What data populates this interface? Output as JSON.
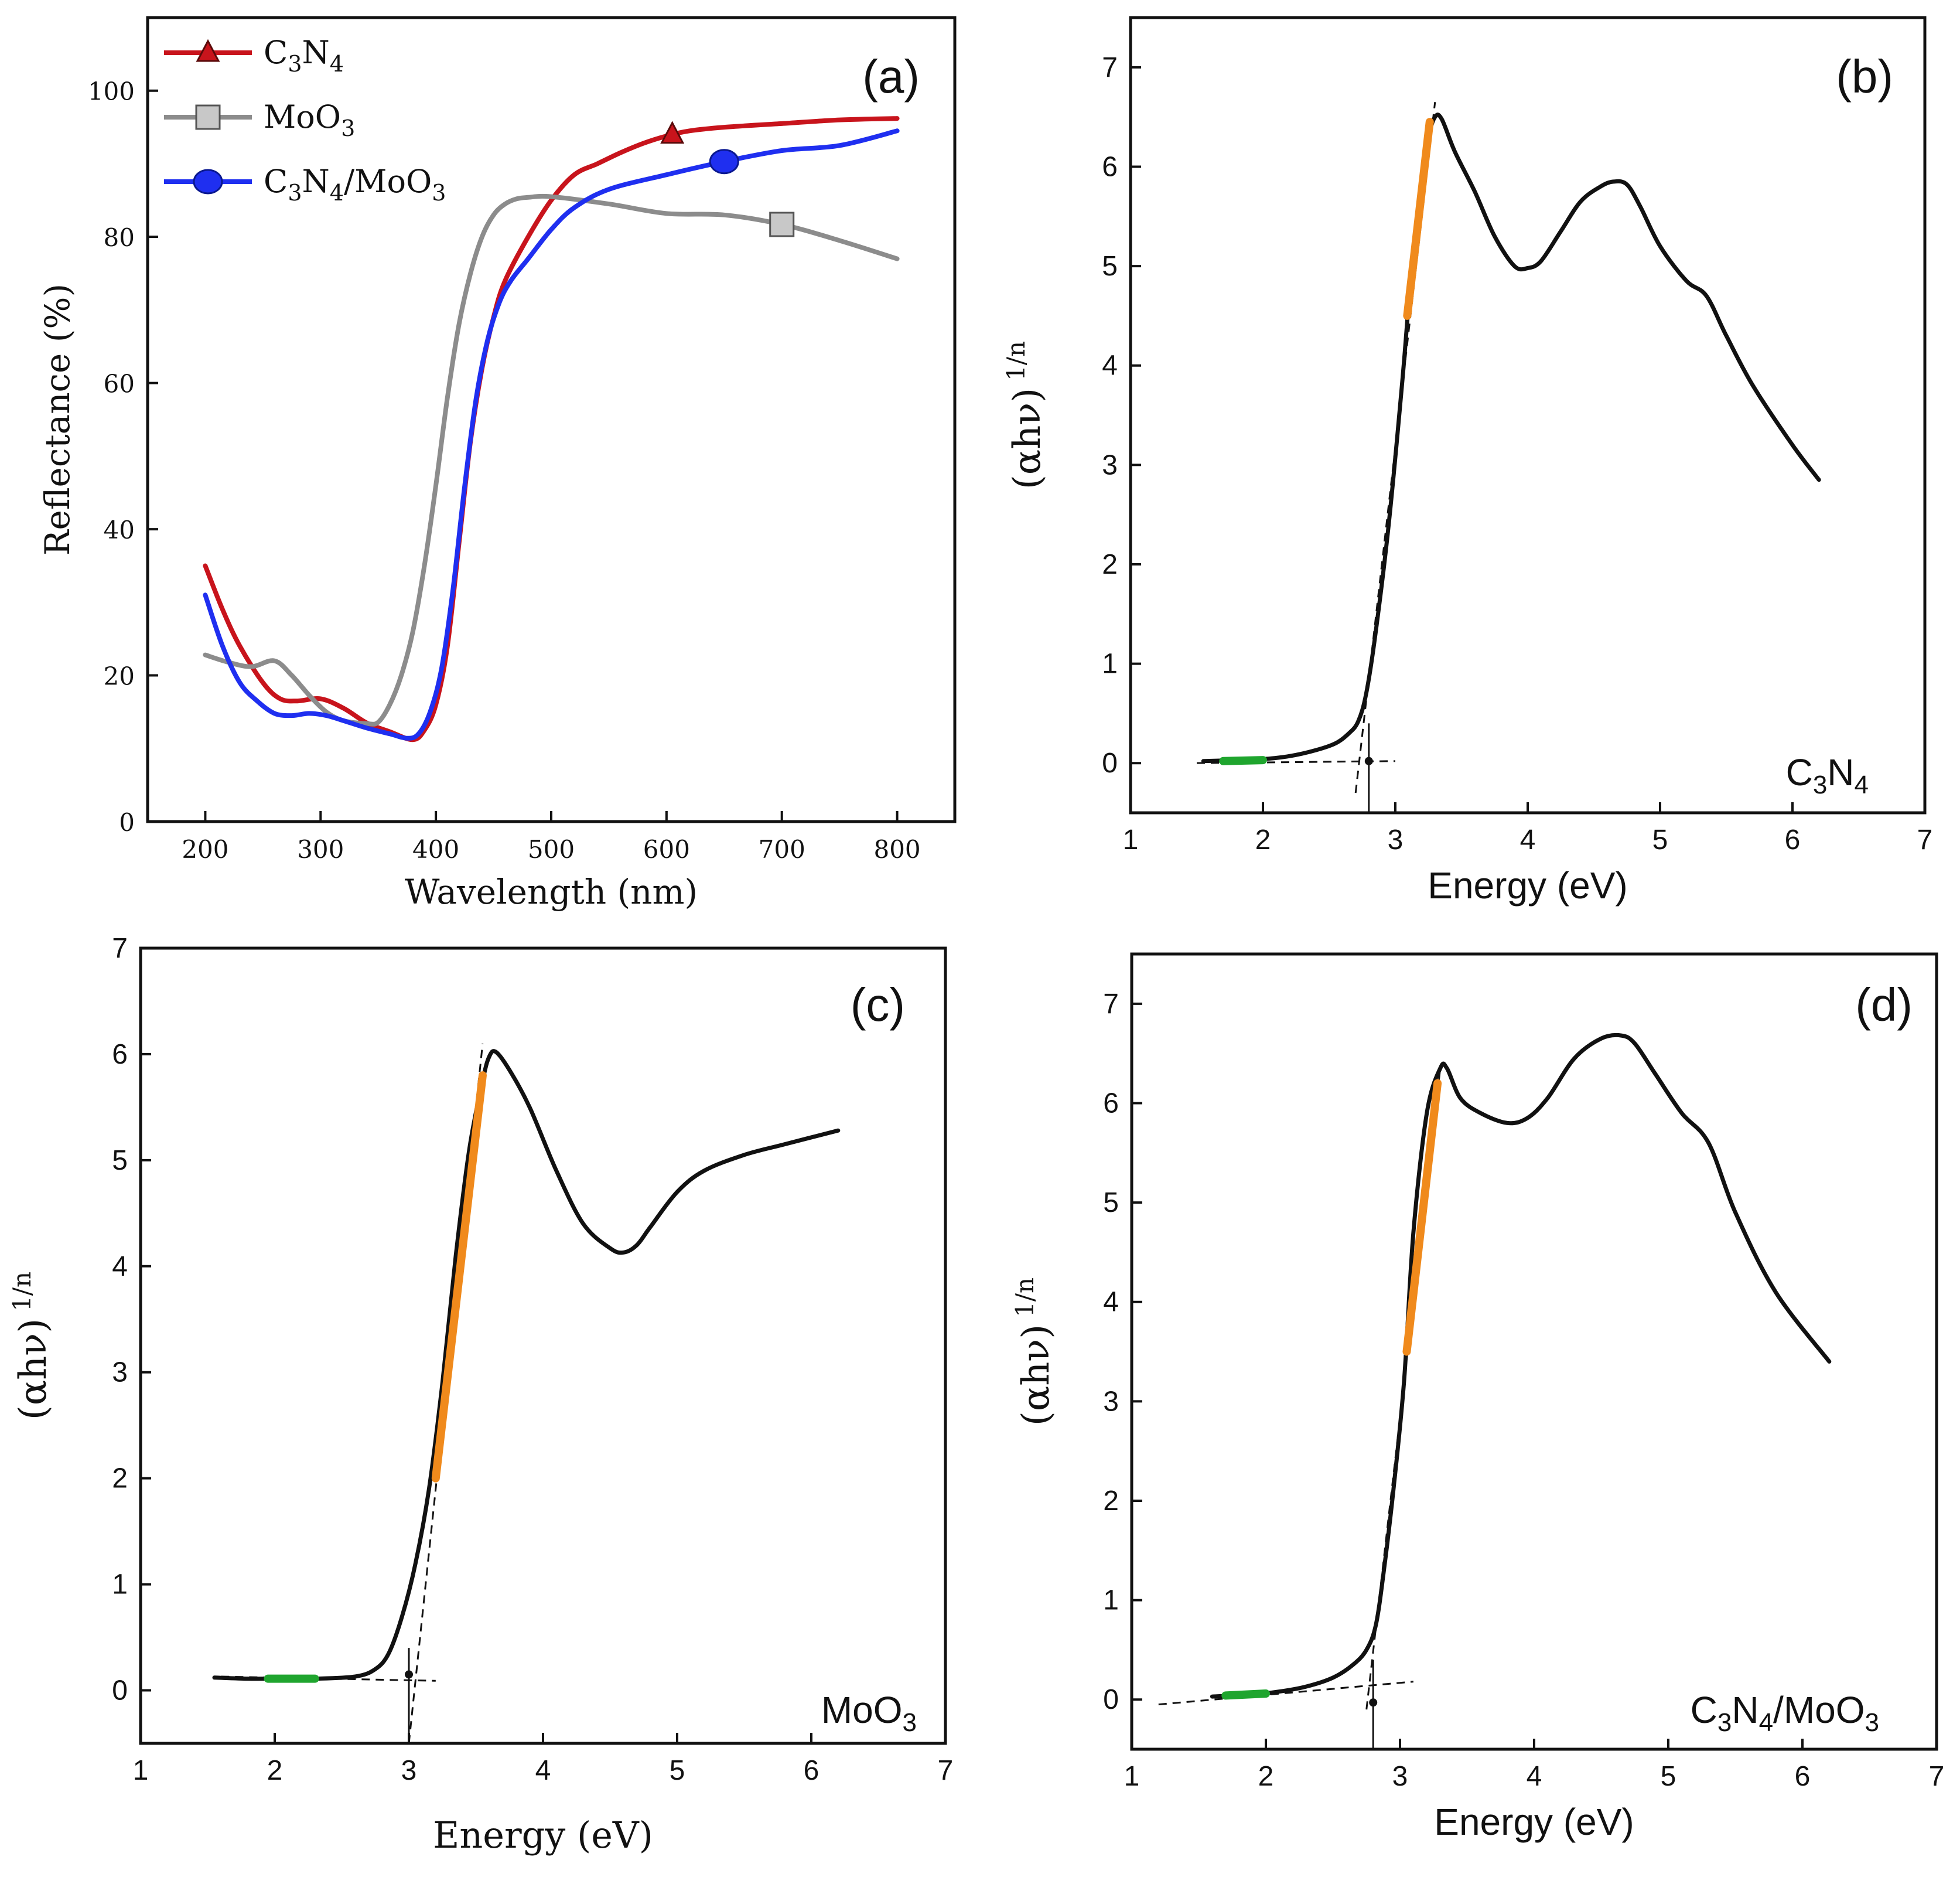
{
  "colors": {
    "red": "#c8141c",
    "gray": "#8c8c8c",
    "blue": "#1f2ff0",
    "black": "#111111",
    "orange": "#f08a1c",
    "green": "#1fa52e"
  },
  "chart_data": [
    {
      "id": "a",
      "type": "line",
      "panel_label": "(a)",
      "xlabel": "Wavelength (nm)",
      "ylabel": "Reflectance (%)",
      "xlim": [
        150,
        850
      ],
      "ylim": [
        0,
        110
      ],
      "xticks": [
        200,
        300,
        400,
        500,
        600,
        700,
        800
      ],
      "yticks": [
        0,
        20,
        40,
        60,
        80,
        100
      ],
      "legend_position": "top-left",
      "legend": [
        {
          "base": "C",
          "sub1": "3",
          "mid": "N",
          "sub2": "4",
          "tail": "",
          "sub3": "",
          "end": "",
          "marker": "triangle",
          "color_key": "red"
        },
        {
          "base": "MoO",
          "sub1": "3",
          "mid": "",
          "sub2": "",
          "tail": "",
          "sub3": "",
          "end": "",
          "marker": "square",
          "color_key": "gray"
        },
        {
          "base": "C",
          "sub1": "3",
          "mid": "N",
          "sub2": "4",
          "tail": "/MoO",
          "sub3": "3",
          "end": "",
          "marker": "circle",
          "color_key": "blue"
        }
      ],
      "series": [
        {
          "name": "C3N4",
          "color_key": "red",
          "marker": "triangle",
          "marker_at": [
            605,
            94
          ],
          "x": [
            200,
            215,
            230,
            250,
            265,
            280,
            300,
            320,
            340,
            360,
            380,
            390,
            400,
            410,
            420,
            430,
            440,
            450,
            460,
            480,
            500,
            520,
            540,
            560,
            580,
            600,
            620,
            650,
            700,
            750,
            800
          ],
          "y": [
            35,
            29,
            24,
            19,
            16.8,
            16.5,
            16.8,
            15.5,
            13.5,
            12.3,
            11.2,
            12.5,
            16,
            24,
            38,
            52,
            62,
            69,
            74,
            80,
            85,
            88.5,
            90,
            91.5,
            92.8,
            93.8,
            94.5,
            95,
            95.5,
            96,
            96.2
          ]
        },
        {
          "name": "MoO3",
          "color_key": "gray",
          "marker": "square",
          "marker_at": [
            700,
            81.7
          ],
          "x": [
            200,
            220,
            240,
            260,
            275,
            290,
            305,
            320,
            340,
            350,
            360,
            370,
            380,
            390,
            400,
            410,
            420,
            430,
            440,
            450,
            460,
            470,
            480,
            500,
            550,
            600,
            650,
            700,
            750,
            800
          ],
          "y": [
            22.8,
            21.8,
            21.2,
            22,
            20,
            17.3,
            15,
            13.8,
            13.4,
            13.6,
            16,
            20,
            26,
            35,
            46,
            58,
            68,
            75,
            80,
            83,
            84.5,
            85.2,
            85.4,
            85.5,
            84.5,
            83.2,
            83,
            81.7,
            79.5,
            77
          ]
        },
        {
          "name": "C3N4/MoO3",
          "color_key": "blue",
          "marker": "circle",
          "marker_at": [
            650,
            90.3
          ],
          "x": [
            200,
            215,
            230,
            245,
            260,
            275,
            290,
            305,
            320,
            340,
            360,
            375,
            385,
            395,
            405,
            415,
            425,
            435,
            445,
            455,
            465,
            480,
            500,
            520,
            550,
            600,
            650,
            700,
            750,
            800
          ],
          "y": [
            31,
            24,
            19,
            16.5,
            14.8,
            14.5,
            14.8,
            14.5,
            13.8,
            12.8,
            12,
            11.4,
            12,
            15,
            21,
            32,
            46,
            58,
            66,
            71,
            74,
            77,
            81,
            84,
            86.5,
            88.5,
            90.3,
            91.8,
            92.5,
            94.5
          ]
        }
      ]
    },
    {
      "id": "b",
      "type": "line",
      "panel_label": "(b)",
      "sample_label": {
        "base": "C",
        "sub1": "3",
        "mid": "N",
        "sub2": "4",
        "tail": "",
        "sub3": ""
      },
      "xlabel": "Energy (eV)",
      "ylabel": {
        "main": "(αhν)",
        "sup": "1/n"
      },
      "xlim": [
        1,
        7
      ],
      "ylim": [
        -0.5,
        7.5
      ],
      "xticks": [
        1,
        2,
        3,
        4,
        5,
        6,
        7
      ],
      "yticks": [
        0,
        1,
        2,
        3,
        4,
        5,
        6,
        7
      ],
      "series": [
        {
          "name": "C3N4",
          "x": [
            1.55,
            1.8,
            2.0,
            2.2,
            2.4,
            2.55,
            2.65,
            2.72,
            2.78,
            2.85,
            2.95,
            3.05,
            3.1,
            3.15,
            3.2,
            3.25,
            3.3,
            3.35,
            3.45,
            3.6,
            3.75,
            3.9,
            4.0,
            4.1,
            4.25,
            4.4,
            4.55,
            4.65,
            4.75,
            4.85,
            5.0,
            5.2,
            5.35,
            5.5,
            5.7,
            6.0,
            6.2
          ],
          "y": [
            0.02,
            0.03,
            0.04,
            0.07,
            0.13,
            0.2,
            0.3,
            0.42,
            0.7,
            1.3,
            2.4,
            3.8,
            4.6,
            5.3,
            5.9,
            6.3,
            6.5,
            6.48,
            6.15,
            5.75,
            5.3,
            5.0,
            4.98,
            5.05,
            5.35,
            5.65,
            5.8,
            5.85,
            5.82,
            5.6,
            5.2,
            4.85,
            4.7,
            4.3,
            3.8,
            3.2,
            2.85
          ]
        },
        {
          "name": "fit-upper",
          "x": [
            3.09,
            3.26
          ],
          "y": [
            4.5,
            6.45
          ]
        },
        {
          "name": "fit-baseline",
          "x": [
            1.7,
            2.0
          ],
          "y": [
            0.02,
            0.03
          ]
        }
      ],
      "tangent_lines": [
        {
          "x": [
            2.7,
            3.3
          ],
          "y": [
            -0.3,
            6.65
          ]
        },
        {
          "x": [
            1.5,
            3.0
          ],
          "y": [
            0.0,
            0.02
          ]
        }
      ],
      "intercept_x": 2.8
    },
    {
      "id": "c",
      "type": "line",
      "panel_label": "(c)",
      "sample_label": {
        "base": "MoO",
        "sub1": "3",
        "mid": "",
        "sub2": "",
        "tail": "",
        "sub3": ""
      },
      "xlabel": "Energy (eV)",
      "ylabel": {
        "main": "(αhν)",
        "sup": "1/n"
      },
      "xlim": [
        1,
        7
      ],
      "ylim": [
        -0.5,
        7
      ],
      "xticks": [
        1,
        2,
        3,
        4,
        5,
        6,
        7
      ],
      "yticks": [
        0,
        1,
        2,
        3,
        4,
        5,
        6,
        7
      ],
      "series": [
        {
          "name": "MoO3",
          "x": [
            1.55,
            1.8,
            2.0,
            2.3,
            2.6,
            2.75,
            2.85,
            2.95,
            3.05,
            3.15,
            3.25,
            3.35,
            3.45,
            3.55,
            3.6,
            3.65,
            3.75,
            3.9,
            4.1,
            4.3,
            4.5,
            4.6,
            4.7,
            4.8,
            5.0,
            5.2,
            5.5,
            5.8,
            6.2
          ],
          "y": [
            0.12,
            0.11,
            0.11,
            0.11,
            0.13,
            0.2,
            0.35,
            0.7,
            1.2,
            1.9,
            2.9,
            4.1,
            5.1,
            5.75,
            5.98,
            6.02,
            5.85,
            5.5,
            4.9,
            4.4,
            4.17,
            4.13,
            4.2,
            4.37,
            4.7,
            4.9,
            5.05,
            5.15,
            5.28
          ]
        },
        {
          "name": "fit-upper",
          "x": [
            3.2,
            3.55
          ],
          "y": [
            2.0,
            5.8
          ]
        },
        {
          "name": "fit-baseline",
          "x": [
            1.95,
            2.3
          ],
          "y": [
            0.11,
            0.11
          ]
        }
      ],
      "tangent_lines": [
        {
          "x": [
            3.0,
            3.55
          ],
          "y": [
            -0.5,
            6.1
          ]
        },
        {
          "x": [
            1.6,
            3.2
          ],
          "y": [
            0.13,
            0.09
          ]
        }
      ],
      "intercept_x": 3.0
    },
    {
      "id": "d",
      "type": "line",
      "panel_label": "(d)",
      "sample_label": {
        "base": "C",
        "sub1": "3",
        "mid": "N",
        "sub2": "4",
        "tail": "/MoO",
        "sub3": "3"
      },
      "xlabel": "Energy (eV)",
      "ylabel": {
        "main": "(αhν)",
        "sup": "1/n"
      },
      "xlim": [
        1,
        7
      ],
      "ylim": [
        -0.5,
        7.5
      ],
      "xticks": [
        1,
        2,
        3,
        4,
        5,
        6,
        7
      ],
      "yticks": [
        0,
        1,
        2,
        3,
        4,
        5,
        6,
        7
      ],
      "series": [
        {
          "name": "C3N4/MoO3",
          "x": [
            1.6,
            1.9,
            2.1,
            2.3,
            2.5,
            2.65,
            2.75,
            2.82,
            2.88,
            2.95,
            3.03,
            3.1,
            3.2,
            3.3,
            3.35,
            3.45,
            3.6,
            3.8,
            3.95,
            4.1,
            4.3,
            4.5,
            4.65,
            4.75,
            4.9,
            5.1,
            5.3,
            5.5,
            5.8,
            6.2
          ],
          "y": [
            0.03,
            0.05,
            0.08,
            0.13,
            0.22,
            0.35,
            0.5,
            0.75,
            1.3,
            2.1,
            3.2,
            4.7,
            5.9,
            6.35,
            6.35,
            6.05,
            5.9,
            5.8,
            5.85,
            6.05,
            6.45,
            6.65,
            6.68,
            6.6,
            6.3,
            5.9,
            5.6,
            4.9,
            4.1,
            3.4
          ]
        },
        {
          "name": "fit-upper",
          "x": [
            3.05,
            3.28
          ],
          "y": [
            3.5,
            6.2
          ]
        },
        {
          "name": "fit-baseline",
          "x": [
            1.7,
            2.0
          ],
          "y": [
            0.04,
            0.06
          ]
        }
      ],
      "tangent_lines": [
        {
          "x": [
            2.75,
            3.3
          ],
          "y": [
            -0.1,
            6.35
          ]
        },
        {
          "x": [
            1.2,
            3.1
          ],
          "y": [
            -0.05,
            0.18
          ]
        }
      ],
      "intercept_x": 2.8
    }
  ]
}
